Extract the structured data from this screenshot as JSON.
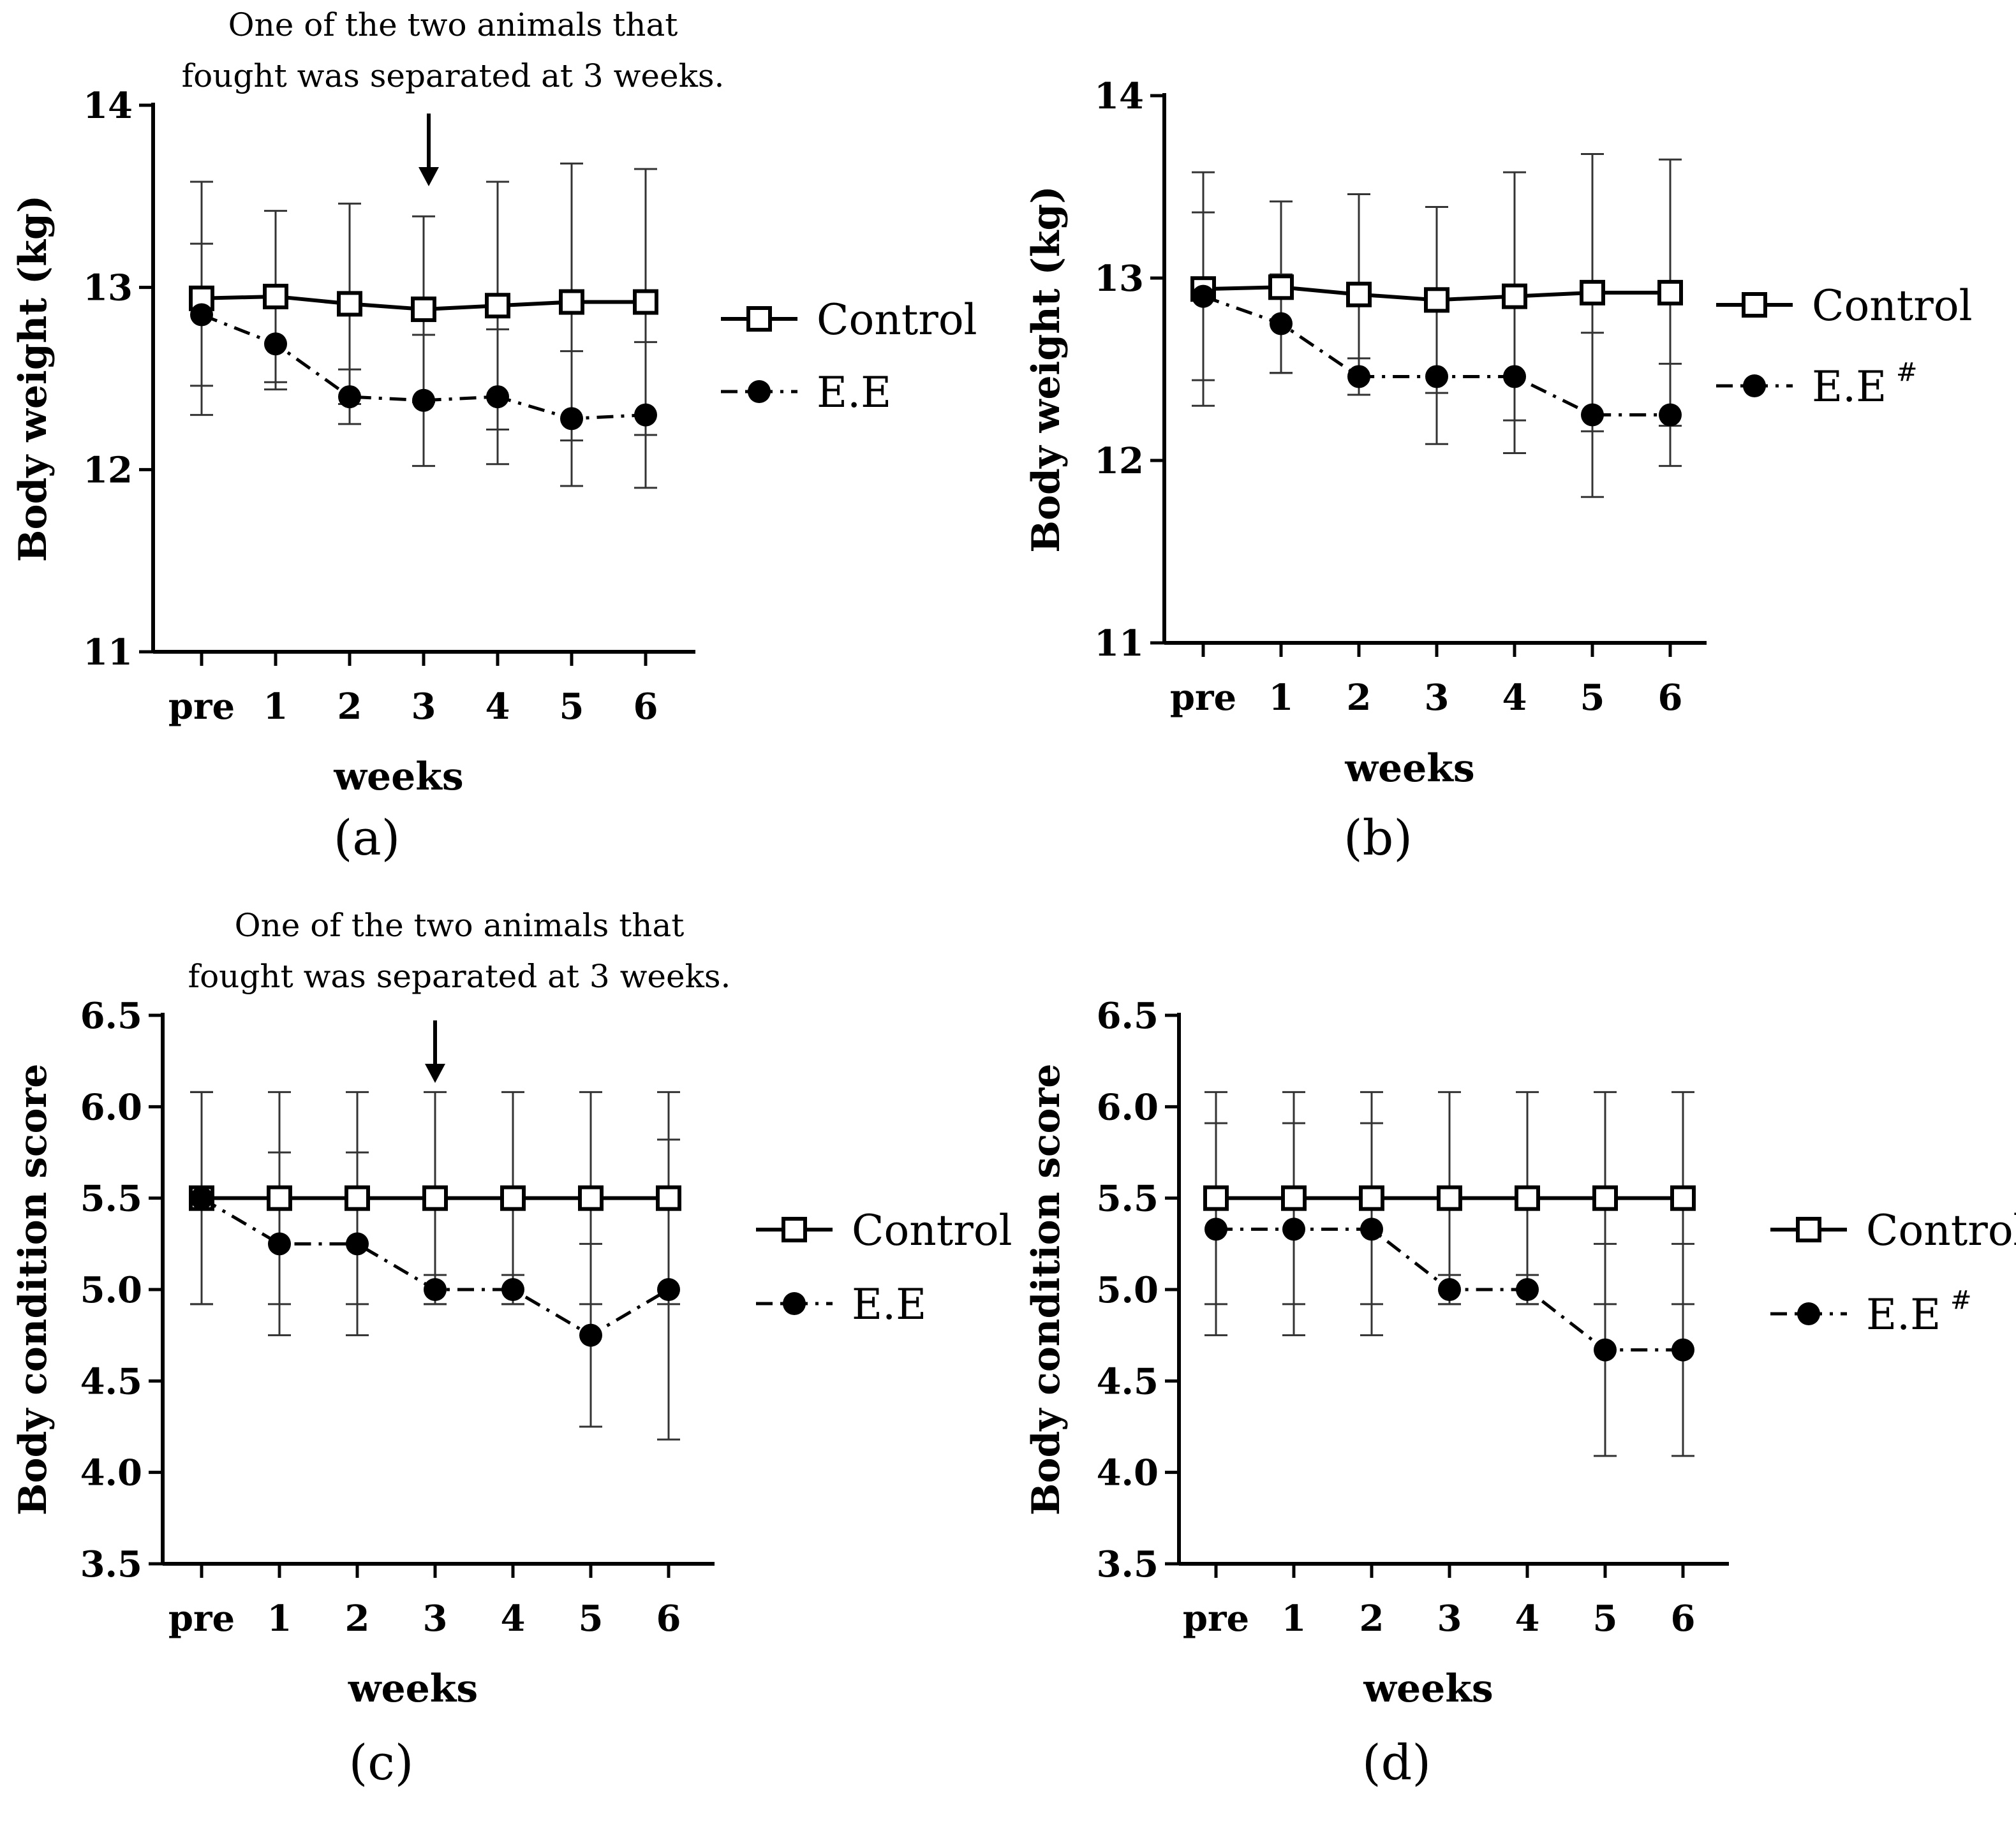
{
  "chart_data": [
    {
      "panel": "(a)",
      "type": "line",
      "categories": [
        "pre",
        "1",
        "2",
        "3",
        "4",
        "5",
        "6"
      ],
      "xlabel": "weeks",
      "ylabel": "Body weight (kg)",
      "ylim": [
        11,
        14
      ],
      "yticks": [
        11,
        12,
        13,
        14
      ],
      "annotation": [
        "One of the two animals that",
        "fought was separated at 3 weeks."
      ],
      "annotation_at": "3",
      "series": [
        {
          "name": "Control",
          "sup": "",
          "marker": "open-square",
          "line": "solid",
          "values": [
            12.94,
            12.95,
            12.91,
            12.88,
            12.9,
            12.92,
            12.92
          ],
          "error": [
            0.64,
            0.47,
            0.55,
            0.51,
            0.68,
            0.76,
            0.73
          ]
        },
        {
          "name": "E.E",
          "sup": "",
          "marker": "filled-circle",
          "line": "dash-dot",
          "values": [
            12.85,
            12.69,
            12.4,
            12.38,
            12.4,
            12.28,
            12.3
          ],
          "error": [
            0.39,
            0.25,
            0.15,
            0.36,
            0.37,
            0.37,
            0.4
          ]
        }
      ]
    },
    {
      "panel": "(b)",
      "type": "line",
      "categories": [
        "pre",
        "1",
        "2",
        "3",
        "4",
        "5",
        "6"
      ],
      "xlabel": "weeks",
      "ylabel": "Body weight (kg)",
      "ylim": [
        11,
        14
      ],
      "yticks": [
        11,
        12,
        13,
        14
      ],
      "series": [
        {
          "name": "Control",
          "sup": "",
          "marker": "open-square",
          "line": "solid",
          "values": [
            12.94,
            12.95,
            12.91,
            12.88,
            12.9,
            12.92,
            12.92
          ],
          "error": [
            0.64,
            0.47,
            0.55,
            0.51,
            0.68,
            0.76,
            0.73
          ]
        },
        {
          "name": "E.E",
          "sup": "#",
          "marker": "filled-circle",
          "line": "dash-dot",
          "values": [
            12.9,
            12.75,
            12.46,
            12.46,
            12.46,
            12.25,
            12.25
          ],
          "error": [
            0.46,
            0.27,
            0.1,
            0.37,
            0.42,
            0.45,
            0.28
          ]
        }
      ]
    },
    {
      "panel": "(c)",
      "type": "line",
      "categories": [
        "pre",
        "1",
        "2",
        "3",
        "4",
        "5",
        "6"
      ],
      "xlabel": "weeks",
      "ylabel": "Body condition score",
      "ylim": [
        3.5,
        6.5
      ],
      "yticks": [
        "3.5",
        "4.0",
        "4.5",
        "5.0",
        "5.5",
        "6.0",
        "6.5"
      ],
      "annotation": [
        "One of the two animals that",
        "fought was separated at 3 weeks."
      ],
      "annotation_at": "3",
      "series": [
        {
          "name": "Control",
          "sup": "",
          "marker": "open-square",
          "line": "solid",
          "values": [
            5.5,
            5.5,
            5.5,
            5.5,
            5.5,
            5.5,
            5.5
          ],
          "error": [
            0.58,
            0.58,
            0.58,
            0.58,
            0.58,
            0.58,
            0.58
          ]
        },
        {
          "name": "E.E",
          "sup": "",
          "marker": "filled-circle",
          "line": "dash-dot",
          "values": [
            5.5,
            5.25,
            5.25,
            5.0,
            5.0,
            4.75,
            5.0
          ],
          "error": [
            0.58,
            0.5,
            0.5,
            0.08,
            0.08,
            0.5,
            0.82
          ]
        }
      ]
    },
    {
      "panel": "(d)",
      "type": "line",
      "categories": [
        "pre",
        "1",
        "2",
        "3",
        "4",
        "5",
        "6"
      ],
      "xlabel": "weeks",
      "ylabel": "Body condition score",
      "ylim": [
        3.5,
        6.5
      ],
      "yticks": [
        "3.5",
        "4.0",
        "4.5",
        "5.0",
        "5.5",
        "6.0",
        "6.5"
      ],
      "series": [
        {
          "name": "Control",
          "sup": "",
          "marker": "open-square",
          "line": "solid",
          "values": [
            5.5,
            5.5,
            5.5,
            5.5,
            5.5,
            5.5,
            5.5
          ],
          "error": [
            0.58,
            0.58,
            0.58,
            0.58,
            0.58,
            0.58,
            0.58
          ]
        },
        {
          "name": "E.E",
          "sup": "#",
          "marker": "filled-circle",
          "line": "dash-dot",
          "values": [
            5.33,
            5.33,
            5.33,
            5.0,
            5.0,
            4.67,
            4.67
          ],
          "error": [
            0.58,
            0.58,
            0.58,
            0.08,
            0.08,
            0.58,
            0.58
          ]
        }
      ]
    }
  ]
}
